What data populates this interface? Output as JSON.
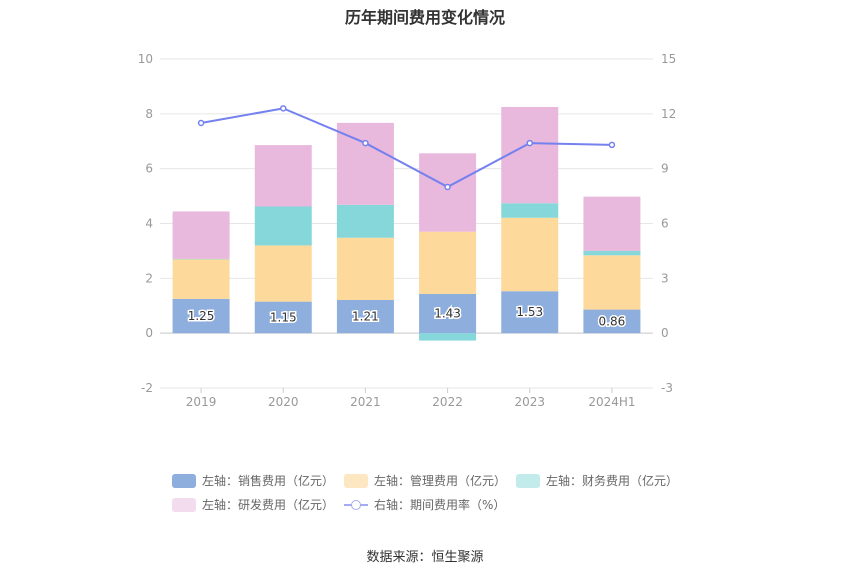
{
  "chart_data": {
    "type": "bar",
    "title": "历年期间费用变化情况",
    "categories": [
      "2019",
      "2020",
      "2021",
      "2022",
      "2023",
      "2024H1"
    ],
    "y_left": {
      "ylim": [
        -2,
        10
      ],
      "ticks": [
        -2,
        0,
        2,
        4,
        6,
        8,
        10
      ]
    },
    "y_right": {
      "ylim": [
        -3,
        15
      ],
      "ticks": [
        -3,
        0,
        3,
        6,
        9,
        12,
        15
      ]
    },
    "grid": true,
    "legend_position": "bottom",
    "series": [
      {
        "name": "左轴：销售费用（亿元）",
        "axis": "left",
        "type": "bar",
        "color": "#8eaedd",
        "values": [
          1.25,
          1.15,
          1.21,
          1.43,
          1.53,
          0.86
        ],
        "labels": [
          "1.25",
          "1.15",
          "1.21",
          "1.43",
          "1.53",
          "0.86"
        ]
      },
      {
        "name": "左轴：管理费用（亿元）",
        "axis": "left",
        "type": "bar",
        "color": "#fdd99b",
        "values": [
          1.45,
          2.05,
          2.27,
          2.27,
          2.68,
          1.98
        ]
      },
      {
        "name": "左轴：财务费用（亿元）",
        "axis": "left",
        "type": "bar",
        "color": "#86d7d9",
        "values": [
          0.01,
          1.42,
          1.2,
          -0.27,
          0.53,
          0.16
        ]
      },
      {
        "name": "左轴：研发费用（亿元）",
        "axis": "left",
        "type": "bar",
        "color": "#e8b9dc",
        "values": [
          1.73,
          2.24,
          2.99,
          2.86,
          3.51,
          1.98
        ]
      },
      {
        "name": "右轴：期间费用率（%）",
        "axis": "right",
        "type": "line",
        "color": "#7481ef",
        "values": [
          11.5,
          12.3,
          10.4,
          8.0,
          10.4,
          10.3
        ]
      }
    ]
  },
  "source": "数据来源：恒生聚源"
}
